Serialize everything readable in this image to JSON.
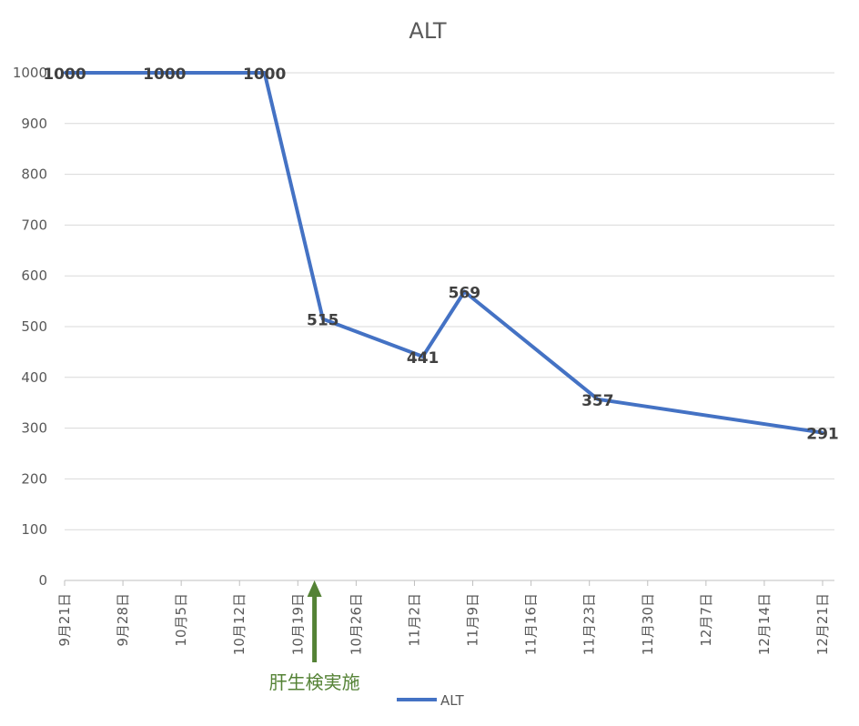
{
  "chart_data": {
    "type": "line",
    "title": "ALT",
    "xlabel": "",
    "ylabel": "",
    "ylim": [
      0,
      1000
    ],
    "yticks": [
      0,
      100,
      200,
      300,
      400,
      500,
      600,
      700,
      800,
      900,
      1000
    ],
    "xlim": [
      "2019-09-21",
      "2019-12-21"
    ],
    "x_tick_labels": [
      "9月21日",
      "9月28日",
      "10月5日",
      "10月12日",
      "10月19日",
      "10月26日",
      "11月2日",
      "11月9日",
      "11月16日",
      "11月23日",
      "11月30日",
      "12月7日",
      "12月14日",
      "12月21日"
    ],
    "grid": true,
    "legend_position": "bottom",
    "series": [
      {
        "name": "ALT",
        "color": "#4472c4",
        "points": [
          {
            "x": "2019-09-21",
            "y": 1000,
            "label": "1000"
          },
          {
            "x": "2019-10-03",
            "y": 1000,
            "label": "1000"
          },
          {
            "x": "2019-10-15",
            "y": 1000,
            "label": "1000"
          },
          {
            "x": "2019-10-22",
            "y": 515,
            "label": "515"
          },
          {
            "x": "2019-11-03",
            "y": 441,
            "label": "441"
          },
          {
            "x": "2019-11-08",
            "y": 569,
            "label": "569"
          },
          {
            "x": "2019-11-24",
            "y": 357,
            "label": "357"
          },
          {
            "x": "2019-12-21",
            "y": 291,
            "label": "291"
          }
        ]
      }
    ],
    "annotations": [
      {
        "text": "肝生検実施",
        "x": "2019-10-21",
        "color": "#548235",
        "icon": "up-arrow-icon"
      }
    ]
  }
}
